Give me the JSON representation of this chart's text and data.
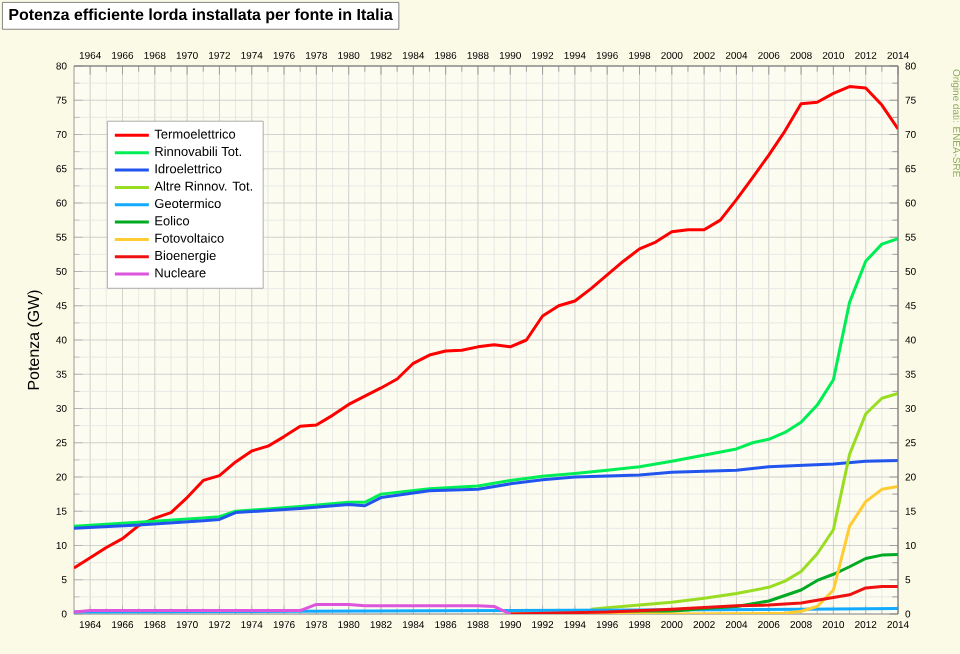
{
  "chart_data": {
    "type": "line",
    "title": "Potenza efficiente lorda installata per fonte in Italia",
    "ylabel": "Potenza (GW)",
    "annotations": [
      "Origine dati: ENEA-SRE"
    ],
    "xlim": [
      1963,
      2014
    ],
    "xticks": [
      1964,
      1966,
      1968,
      1970,
      1972,
      1974,
      1976,
      1978,
      1980,
      1982,
      1984,
      1986,
      1988,
      1990,
      1992,
      1994,
      1996,
      1998,
      2000,
      2002,
      2004,
      2006,
      2008,
      2010,
      2012,
      2014
    ],
    "x2lim": [
      1963,
      2014
    ],
    "x2ticks": [
      1964,
      1966,
      1968,
      1970,
      1972,
      1974,
      1976,
      1978,
      1980,
      1982,
      1984,
      1986,
      1988,
      1990,
      1992,
      1994,
      1996,
      1998,
      2000,
      2002,
      2004,
      2006,
      2008,
      2010,
      2012,
      2014
    ],
    "ylim": [
      0,
      80
    ],
    "yticks": [
      0,
      5,
      10,
      15,
      20,
      25,
      30,
      35,
      40,
      45,
      50,
      55,
      60,
      65,
      70,
      75,
      80
    ],
    "y2lim": [
      0,
      80
    ],
    "y2ticks": [
      0,
      5,
      10,
      15,
      20,
      25,
      30,
      35,
      40,
      45,
      50,
      55,
      60,
      65,
      70,
      75,
      80
    ],
    "grid": true,
    "legend": "top left",
    "series": [
      {
        "name": "Termoelettrico",
        "color": "#ff0000",
        "x": [
          1963,
          1964,
          1965,
          1966,
          1967,
          1968,
          1969,
          1970,
          1971,
          1972,
          1973,
          1974,
          1975,
          1976,
          1977,
          1978,
          1979,
          1980,
          1981,
          1982,
          1983,
          1984,
          1985,
          1986,
          1987,
          1988,
          1989,
          1990,
          1991,
          1992,
          1993,
          1994,
          1995,
          1996,
          1997,
          1998,
          1999,
          2000,
          2001,
          2002,
          2003,
          2004,
          2005,
          2006,
          2007,
          2008,
          2009,
          2010,
          2011,
          2012,
          2013,
          2014
        ],
        "values": [
          6.7,
          8.2,
          9.7,
          11,
          12.9,
          14,
          14.8,
          17,
          19.5,
          20.2,
          22.2,
          23.8,
          24.5,
          25.9,
          27.4,
          27.6,
          29,
          30.6,
          31.8,
          33,
          34.3,
          36.6,
          37.8,
          38.4,
          38.5,
          39,
          39.3,
          39,
          40,
          43.5,
          45,
          45.7,
          47.5,
          49.5,
          51.5,
          53.3,
          54.3,
          55.8,
          56.1,
          56.1,
          57.5,
          60.5,
          63.7,
          67,
          70.5,
          74.5,
          74.7,
          76,
          77,
          76.8,
          74.3,
          70.8
        ]
      },
      {
        "name": "Rinnovabili Tot.",
        "color": "#00ee55",
        "x": [
          1963,
          1967,
          1971,
          1972,
          1973,
          1977,
          1980,
          1981,
          1982,
          1985,
          1988,
          1990,
          1992,
          1994,
          1996,
          1998,
          2000,
          2002,
          2004,
          2005,
          2006,
          2007,
          2008,
          2009,
          2010,
          2011,
          2012,
          2013,
          2014
        ],
        "values": [
          12.8,
          13.4,
          14,
          14.2,
          15,
          15.7,
          16.3,
          16.3,
          17.5,
          18.3,
          18.7,
          19.5,
          20.1,
          20.5,
          21,
          21.5,
          22.3,
          23.2,
          24.1,
          25,
          25.5,
          26.5,
          28,
          30.5,
          34.2,
          45.5,
          51.5,
          54,
          54.8
        ]
      },
      {
        "name": "Idroelettrico",
        "color": "#2255ee",
        "x": [
          1963,
          1967,
          1971,
          1972,
          1973,
          1977,
          1980,
          1981,
          1982,
          1985,
          1988,
          1990,
          1992,
          1994,
          1998,
          2000,
          2004,
          2006,
          2010,
          2012,
          2014
        ],
        "values": [
          12.5,
          13,
          13.6,
          13.8,
          14.8,
          15.4,
          16,
          15.8,
          17,
          18,
          18.2,
          19,
          19.6,
          20,
          20.3,
          20.7,
          21,
          21.5,
          21.9,
          22.3,
          22.4
        ]
      },
      {
        "name": "Altre Rinnov. Tot.",
        "color": "#99dd22",
        "x": [
          1995,
          1996,
          1998,
          2000,
          2002,
          2004,
          2006,
          2007,
          2008,
          2009,
          2010,
          2011,
          2012,
          2013,
          2014
        ],
        "values": [
          0.7,
          0.9,
          1.3,
          1.7,
          2.3,
          3,
          3.9,
          4.8,
          6.2,
          8.8,
          12.3,
          23.3,
          29.2,
          31.5,
          32.2
        ]
      },
      {
        "name": "Geotermico",
        "color": "#11aaff",
        "x": [
          1963,
          1977,
          1990,
          2000,
          2008,
          2014
        ],
        "values": [
          0.3,
          0.4,
          0.5,
          null,
          0.7,
          0.8
        ]
      },
      {
        "name": "Eolico",
        "color": "#00aa22",
        "x": [
          1990,
          1995,
          2000,
          2002,
          2004,
          2006,
          2007,
          2008,
          2009,
          2010,
          2011,
          2012,
          2013,
          2014
        ],
        "values": [
          0,
          0,
          0.4,
          0.8,
          1.1,
          1.9,
          2.7,
          3.5,
          4.9,
          5.8,
          6.9,
          8.1,
          8.6,
          8.7
        ]
      },
      {
        "name": "Fotovoltaico",
        "color": "#ffcc33",
        "x": [
          1990,
          2000,
          2007,
          2008,
          2009,
          2010,
          2011,
          2012,
          2013,
          2014
        ],
        "values": [
          0,
          0,
          0.1,
          0.4,
          1.1,
          3.5,
          12.8,
          16.4,
          18.2,
          18.6
        ]
      },
      {
        "name": "Bioenergie",
        "color": "#ee1111",
        "x": [
          1990,
          1996,
          2000,
          2004,
          2006,
          2008,
          2009,
          2010,
          2011,
          2012,
          2013,
          2014
        ],
        "values": [
          0,
          0.3,
          0.7,
          1.2,
          1.3,
          1.6,
          2,
          2.4,
          2.8,
          3.8,
          4,
          4
        ]
      },
      {
        "name": "Nucleare",
        "color": "#dd55dd",
        "x": [
          1963,
          1964,
          1977,
          1978,
          1980,
          1981,
          1988,
          1989,
          1990
        ],
        "values": [
          0.3,
          0.5,
          0.5,
          1.4,
          1.4,
          1.2,
          1.2,
          1.1,
          0
        ]
      }
    ]
  }
}
